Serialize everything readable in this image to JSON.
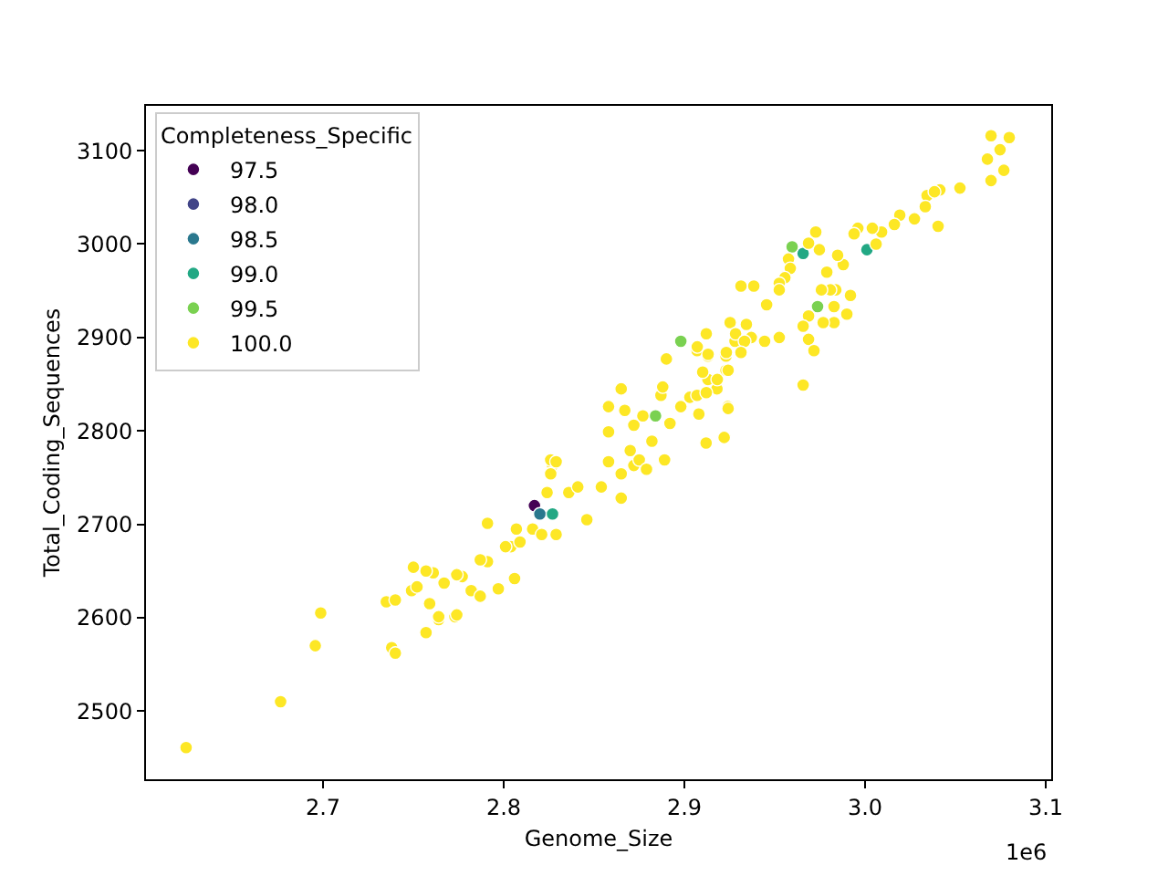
{
  "chart_data": {
    "type": "scatter",
    "xlabel": "Genome_Size",
    "ylabel": "Total_Coding_Sequences",
    "legend_title": "Completeness_Specific",
    "legend": "top left",
    "marker": "circle",
    "xlim": [
      2.602,
      3.103
    ],
    "ylim": [
      2427,
      3148
    ],
    "xticks": [
      2.7,
      2.8,
      2.9,
      {
        "value": 3.0,
        "label": "3.0"
      },
      3.1
    ],
    "yticks": [
      2500,
      2600,
      2700,
      2800,
      2900,
      3000,
      3100
    ],
    "annotations": [
      "1e6"
    ],
    "series": [
      {
        "name": "97.5",
        "color": "#440154",
        "x": [
          2.817
        ],
        "values": [
          2720
        ]
      },
      {
        "name": "98.0",
        "color": "#414487"
      },
      {
        "name": "98.5",
        "color": "#2a788e",
        "x": [
          2.82
        ],
        "values": [
          2711
        ]
      },
      {
        "name": "99.0",
        "color": "#22a884",
        "x": [
          2.827,
          3.001,
          2.9657
        ],
        "values": [
          2711,
          2994,
          2990
        ]
      },
      {
        "name": "99.5",
        "color": "#7ad151",
        "x": [
          2.884,
          2.898,
          2.9596,
          2.9737
        ],
        "values": [
          2816,
          2896,
          2997,
          2933
        ]
      },
      {
        "name": "100.0",
        "color": "#fde725",
        "x": [
          2.6242,
          2.6765,
          2.6957,
          2.6987,
          2.735,
          2.74,
          2.738,
          2.74,
          2.749,
          2.75,
          2.752,
          2.757,
          2.759,
          2.764,
          2.773,
          2.767,
          2.777,
          2.782,
          2.797,
          2.791,
          2.804,
          2.761,
          2.757,
          2.774,
          2.764,
          2.774,
          2.787,
          2.787,
          2.791,
          2.806,
          2.807,
          2.801,
          2.809,
          2.816,
          2.821,
          2.829,
          2.824,
          2.827,
          2.826,
          2.836,
          2.846,
          2.841,
          2.854,
          2.858,
          2.865,
          2.872,
          2.87,
          2.875,
          2.879,
          2.865,
          2.858,
          2.858,
          2.867,
          2.872,
          2.865,
          2.882,
          2.877,
          2.887,
          2.888,
          2.889,
          2.892,
          2.898,
          2.903,
          2.907,
          2.908,
          2.913,
          2.918,
          2.912,
          2.922,
          2.924,
          2.907,
          2.913,
          2.923,
          2.928,
          2.937,
          2.89,
          2.923,
          2.826,
          2.829,
          3.0697,
          3.0798,
          3.0747,
          3.0677,
          3.0768,
          3.0697,
          3.0525,
          3.0414,
          3.0343,
          3.0384,
          3.0333,
          3.0404,
          3.0273,
          3.0192,
          3.0162,
          3.0091,
          3.004,
          2.996,
          2.9939,
          3.0061,
          2.9919,
          2.9879,
          2.9848,
          2.9838,
          2.9808,
          2.9758,
          2.9828,
          2.9899,
          2.9828,
          2.9768,
          2.9687,
          2.9657,
          2.9687,
          2.9717,
          2.9657,
          2.9747,
          2.9727,
          2.9687,
          2.9576,
          2.9586,
          2.9556,
          2.9525,
          2.9525,
          2.9455,
          2.9384,
          2.9313,
          2.9253,
          2.9343,
          2.9283,
          2.9333,
          2.9444,
          2.9525,
          2.9121,
          2.9071,
          2.9131,
          2.9232,
          2.9313,
          2.9242,
          2.9182,
          2.9101,
          2.9121,
          2.9242,
          2.9788
        ],
        "values": [
          2461,
          2510,
          2570,
          2605,
          2617,
          2619,
          2568,
          2562,
          2629,
          2654,
          2633,
          2584,
          2615,
          2598,
          2601,
          2637,
          2644,
          2629,
          2631,
          2660,
          2676,
          2648,
          2650,
          2646,
          2601,
          2603,
          2623,
          2662,
          2701,
          2642,
          2695,
          2676,
          2681,
          2695,
          2689,
          2689,
          2734,
          2763,
          2754,
          2734,
          2705,
          2740,
          2740,
          2767,
          2754,
          2763,
          2779,
          2769,
          2759,
          2728,
          2826,
          2799,
          2822,
          2806,
          2845,
          2789,
          2816,
          2838,
          2847,
          2769,
          2808,
          2826,
          2836,
          2838,
          2818,
          2855,
          2845,
          2787,
          2793,
          2826,
          2886,
          2880,
          2880,
          2896,
          2900,
          2877,
          2865,
          2769,
          2767,
          3116,
          3114,
          3101,
          3091,
          3079,
          3068,
          3060,
          3058,
          3052,
          3056,
          3040,
          3019,
          3027,
          3031,
          3021,
          3013,
          3017,
          3017,
          3011,
          3000,
          2945,
          2978,
          2988,
          2951,
          2951,
          2951,
          2933,
          2925,
          2916,
          2916,
          2923,
          2912,
          2898,
          2886,
          2849,
          2994,
          3013,
          3001,
          2984,
          2974,
          2964,
          2958,
          2951,
          2935,
          2955,
          2955,
          2916,
          2914,
          2904,
          2896,
          2896,
          2900,
          2904,
          2890,
          2882,
          2884,
          2884,
          2865,
          2855,
          2863,
          2841,
          2824,
          2970
        ]
      }
    ]
  }
}
